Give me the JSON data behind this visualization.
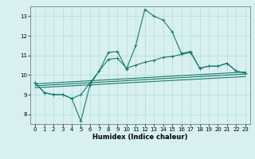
{
  "xlabel": "Humidex (Indice chaleur)",
  "bg_color": "#d8f0f0",
  "grid_color": "#b8dede",
  "line_color": "#1a7a6e",
  "xlim": [
    -0.5,
    23.5
  ],
  "ylim": [
    7.5,
    13.5
  ],
  "xticks": [
    0,
    1,
    2,
    3,
    4,
    5,
    6,
    7,
    8,
    9,
    10,
    11,
    12,
    13,
    14,
    15,
    16,
    17,
    18,
    19,
    20,
    21,
    22,
    23
  ],
  "yticks": [
    8,
    9,
    10,
    11,
    12,
    13
  ],
  "line1_x": [
    0,
    1,
    2,
    3,
    4,
    5,
    6,
    7,
    8,
    9,
    10,
    11,
    12,
    13,
    14,
    15,
    16,
    17,
    18,
    19,
    20,
    21,
    22,
    23
  ],
  "line1_y": [
    9.6,
    9.1,
    9.0,
    9.0,
    8.8,
    7.65,
    9.5,
    10.2,
    11.15,
    11.2,
    10.3,
    11.5,
    13.35,
    13.0,
    12.8,
    12.2,
    11.1,
    11.2,
    10.35,
    10.45,
    10.45,
    10.6,
    10.2,
    10.1
  ],
  "line2_x": [
    0,
    1,
    2,
    3,
    4,
    5,
    6,
    7,
    8,
    9,
    10,
    11,
    12,
    13,
    14,
    15,
    16,
    17,
    18,
    19,
    20,
    21,
    22,
    23
  ],
  "line2_y": [
    9.6,
    9.1,
    9.0,
    9.0,
    8.8,
    9.0,
    9.6,
    10.2,
    10.8,
    10.85,
    10.35,
    10.5,
    10.65,
    10.75,
    10.9,
    10.95,
    11.05,
    11.15,
    10.35,
    10.45,
    10.45,
    10.6,
    10.2,
    10.1
  ],
  "line3_x": [
    0,
    23
  ],
  "line3_y": [
    9.55,
    10.15
  ],
  "line4_x": [
    0,
    23
  ],
  "line4_y": [
    9.45,
    10.05
  ],
  "line5_x": [
    0,
    23
  ],
  "line5_y": [
    9.35,
    9.92
  ]
}
